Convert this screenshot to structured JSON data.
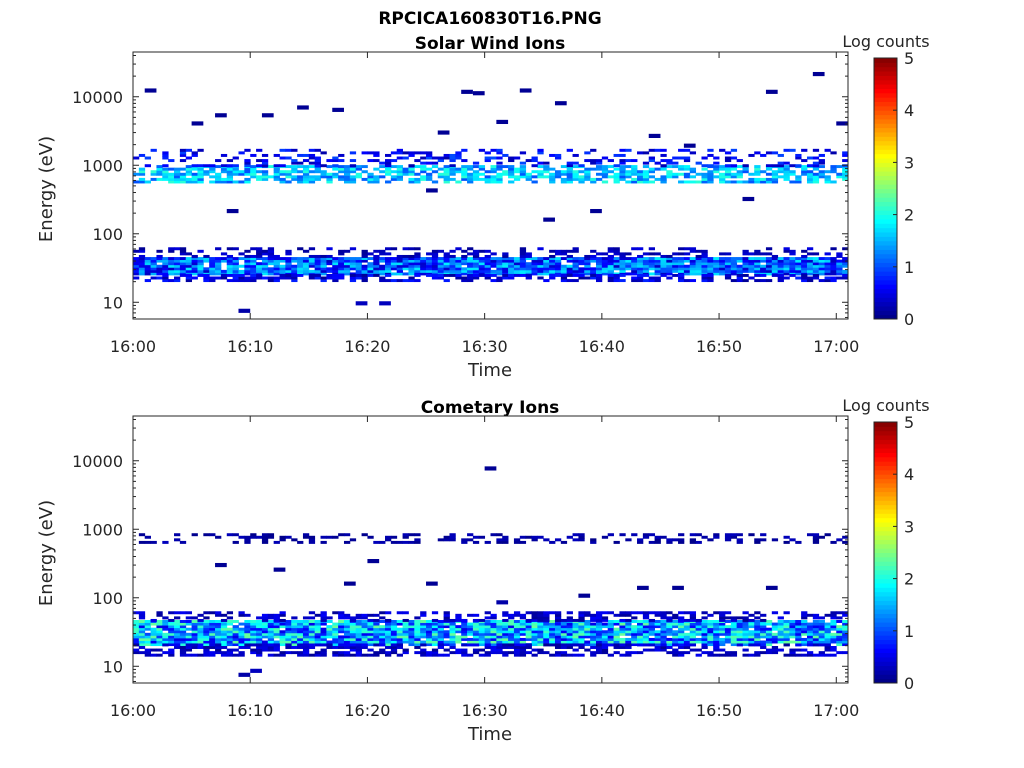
{
  "figure": {
    "filename": "RPCICA160830T16.PNG"
  },
  "chart_data": [
    {
      "type": "heatmap",
      "title": "Solar Wind Ions",
      "xlabel": "Time",
      "ylabel": "Energy (eV)",
      "y_scale": "log",
      "xlim": [
        "16:00",
        "17:01"
      ],
      "ylim": [
        5.7,
        45000
      ],
      "x_ticks": [
        "16:00",
        "16:10",
        "16:20",
        "16:30",
        "16:40",
        "16:50",
        "17:00"
      ],
      "y_ticks": [
        "10",
        "100",
        "1000",
        "10000"
      ],
      "colorbar": {
        "label": "Log counts",
        "min": 0,
        "max": 5,
        "ticks": [
          "0",
          "1",
          "2",
          "3",
          "4",
          "5"
        ],
        "colormap": "jet"
      },
      "grid": false,
      "bands": [
        {
          "e_min": 25,
          "e_max": 45,
          "level_min": 0.3,
          "level_max": 1.8,
          "density": 0.95
        },
        {
          "e_min": 20,
          "e_max": 25,
          "level_min": 0.1,
          "level_max": 0.8,
          "density": 0.55
        },
        {
          "e_min": 45,
          "e_max": 60,
          "level_min": 0.1,
          "level_max": 0.5,
          "density": 0.35
        },
        {
          "e_min": 550,
          "e_max": 950,
          "level_min": 1.0,
          "level_max": 2.1,
          "density": 0.65
        },
        {
          "e_min": 950,
          "e_max": 1700,
          "level_min": 0.2,
          "level_max": 1.0,
          "density": 0.3
        }
      ],
      "isolated_points": [
        {
          "t": "16:01",
          "e": 11500,
          "v": 0.1
        },
        {
          "t": "16:05",
          "e": 3800,
          "v": 0.1
        },
        {
          "t": "16:07",
          "e": 5000,
          "v": 0.1
        },
        {
          "t": "16:08",
          "e": 200,
          "v": 0.1
        },
        {
          "t": "16:09",
          "e": 7,
          "v": 0.2
        },
        {
          "t": "16:11",
          "e": 5000,
          "v": 0.1
        },
        {
          "t": "16:14",
          "e": 6500,
          "v": 0.1
        },
        {
          "t": "16:17",
          "e": 6000,
          "v": 0.1
        },
        {
          "t": "16:19",
          "e": 9,
          "v": 0.3
        },
        {
          "t": "16:21",
          "e": 9,
          "v": 0.3
        },
        {
          "t": "16:25",
          "e": 400,
          "v": 0.1
        },
        {
          "t": "16:26",
          "e": 2800,
          "v": 0.1
        },
        {
          "t": "16:28",
          "e": 11000,
          "v": 0.1
        },
        {
          "t": "16:29",
          "e": 10500,
          "v": 0.1
        },
        {
          "t": "16:31",
          "e": 4000,
          "v": 0.1
        },
        {
          "t": "16:33",
          "e": 11500,
          "v": 0.1
        },
        {
          "t": "16:35",
          "e": 150,
          "v": 0.1
        },
        {
          "t": "16:36",
          "e": 7500,
          "v": 0.1
        },
        {
          "t": "16:39",
          "e": 200,
          "v": 0.1
        },
        {
          "t": "16:44",
          "e": 2500,
          "v": 0.1
        },
        {
          "t": "16:47",
          "e": 1800,
          "v": 0.1
        },
        {
          "t": "16:52",
          "e": 300,
          "v": 0.1
        },
        {
          "t": "16:54",
          "e": 11000,
          "v": 0.1
        },
        {
          "t": "16:58",
          "e": 20000,
          "v": 0.1
        },
        {
          "t": "17:00",
          "e": 3800,
          "v": 0.1
        }
      ]
    },
    {
      "type": "heatmap",
      "title": "Cometary Ions",
      "xlabel": "Time",
      "ylabel": "Energy (eV)",
      "y_scale": "log",
      "xlim": [
        "16:00",
        "17:01"
      ],
      "ylim": [
        5.7,
        45000
      ],
      "x_ticks": [
        "16:00",
        "16:10",
        "16:20",
        "16:30",
        "16:40",
        "16:50",
        "17:00"
      ],
      "y_ticks": [
        "10",
        "100",
        "1000",
        "10000"
      ],
      "colorbar": {
        "label": "Log counts",
        "min": 0,
        "max": 5,
        "ticks": [
          "0",
          "1",
          "2",
          "3",
          "4",
          "5"
        ],
        "colormap": "jet"
      },
      "grid": false,
      "bands": [
        {
          "e_min": 20,
          "e_max": 45,
          "level_min": 0.5,
          "level_max": 2.4,
          "density": 0.95
        },
        {
          "e_min": 14,
          "e_max": 20,
          "level_min": 0.1,
          "level_max": 0.6,
          "density": 0.55
        },
        {
          "e_min": 45,
          "e_max": 60,
          "level_min": 0.1,
          "level_max": 0.6,
          "density": 0.45
        },
        {
          "e_min": 620,
          "e_max": 850,
          "level_min": 0.05,
          "level_max": 0.3,
          "density": 0.35
        }
      ],
      "isolated_points": [
        {
          "t": "16:07",
          "e": 280,
          "v": 0.1
        },
        {
          "t": "16:09",
          "e": 7,
          "v": 0.2
        },
        {
          "t": "16:10",
          "e": 8,
          "v": 0.3
        },
        {
          "t": "16:12",
          "e": 240,
          "v": 0.1
        },
        {
          "t": "16:18",
          "e": 150,
          "v": 0.1
        },
        {
          "t": "16:20",
          "e": 320,
          "v": 0.1
        },
        {
          "t": "16:25",
          "e": 150,
          "v": 0.1
        },
        {
          "t": "16:30",
          "e": 7200,
          "v": 0.1
        },
        {
          "t": "16:31",
          "e": 80,
          "v": 0.2
        },
        {
          "t": "16:38",
          "e": 100,
          "v": 0.1
        },
        {
          "t": "16:43",
          "e": 130,
          "v": 0.1
        },
        {
          "t": "16:46",
          "e": 130,
          "v": 0.1
        },
        {
          "t": "16:54",
          "e": 130,
          "v": 0.1
        }
      ]
    }
  ]
}
